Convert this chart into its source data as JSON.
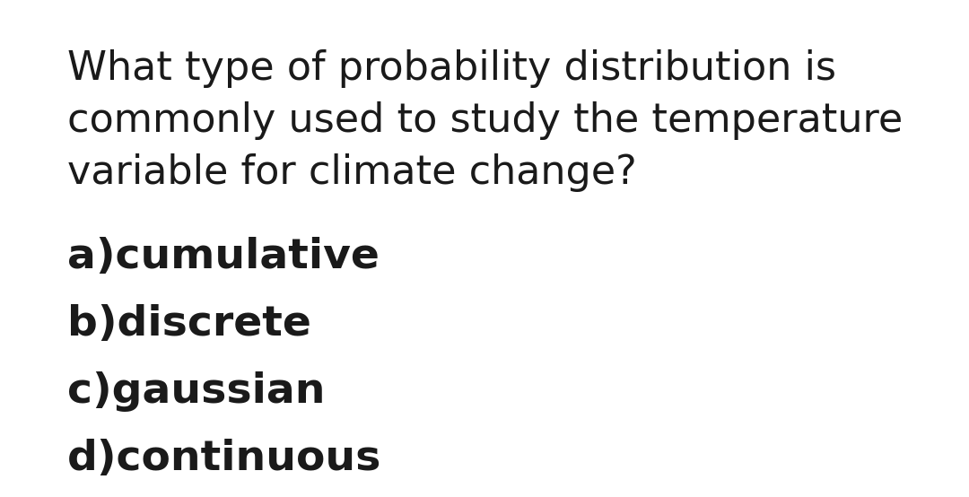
{
  "background_color": "#ffffff",
  "question_lines": [
    "What type of probability distribution is",
    "commonly used to study the temperature",
    "variable for climate change?"
  ],
  "question_fontsize": 32,
  "question_fontweight": "normal",
  "question_color": "#1a1a1a",
  "answers": [
    "a)cumulative",
    "b)discrete",
    "c)gaussian",
    "d)continuous"
  ],
  "answer_fontsize": 34,
  "answer_fontweight": "bold",
  "answer_color": "#1a1a1a",
  "font_family": "DejaVu Sans",
  "fig_width": 10.8,
  "fig_height": 5.54,
  "dpi": 100
}
